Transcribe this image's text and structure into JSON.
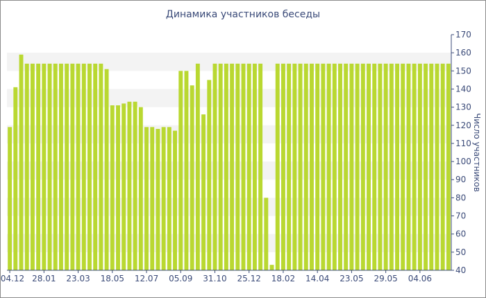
{
  "chart_data": {
    "type": "bar",
    "title": "Динамика участников беседы",
    "ylabel": "Число участников",
    "xlabel": "",
    "ylim": [
      40,
      170
    ],
    "yticks": [
      40,
      50,
      60,
      70,
      80,
      90,
      100,
      110,
      120,
      130,
      140,
      150,
      160,
      170
    ],
    "y_axis_position": "right",
    "bar_color": "#b9d831",
    "band_color": "#f3f3f3",
    "axis_color": "#3a4a78",
    "x_tick_labels": [
      {
        "label": "04.12",
        "index": 0
      },
      {
        "label": "28.01",
        "index": 6
      },
      {
        "label": "23.03",
        "index": 12
      },
      {
        "label": "18.05",
        "index": 18
      },
      {
        "label": "12.07",
        "index": 24
      },
      {
        "label": "05.09",
        "index": 30
      },
      {
        "label": "31.10",
        "index": 36
      },
      {
        "label": "25.12",
        "index": 42
      },
      {
        "label": "18.02",
        "index": 48
      },
      {
        "label": "14.04",
        "index": 54
      },
      {
        "label": "23.05",
        "index": 60
      },
      {
        "label": "29.05",
        "index": 66
      },
      {
        "label": "04.06",
        "index": 72
      }
    ],
    "values": [
      119,
      141,
      159,
      154,
      154,
      154,
      154,
      154,
      154,
      154,
      154,
      154,
      154,
      154,
      154,
      154,
      154,
      151,
      131,
      131,
      132,
      133,
      133,
      130,
      119,
      119,
      118,
      119,
      119,
      117,
      150,
      150,
      142,
      154,
      126,
      145,
      154,
      154,
      154,
      154,
      154,
      154,
      154,
      154,
      154,
      80,
      43,
      154,
      154,
      154,
      154,
      154,
      154,
      154,
      154,
      154,
      154,
      154,
      154,
      154,
      154,
      154,
      154,
      154,
      154,
      154,
      154,
      154,
      154,
      154,
      154,
      154,
      154,
      154,
      154,
      154,
      154,
      154
    ]
  }
}
